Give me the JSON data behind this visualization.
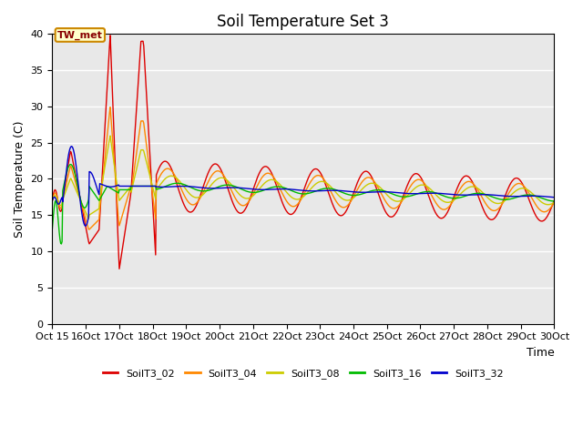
{
  "title": "Soil Temperature Set 3",
  "xlabel": "Time",
  "ylabel": "Soil Temperature (C)",
  "ylim": [
    0,
    40
  ],
  "xlim": [
    0,
    15
  ],
  "series_colors": [
    "#dd0000",
    "#ff8800",
    "#cccc00",
    "#00bb00",
    "#0000cc"
  ],
  "series_labels": [
    "SoilT3_02",
    "SoilT3_04",
    "SoilT3_08",
    "SoilT3_16",
    "SoilT3_32"
  ],
  "annotation_text": "TW_met",
  "x_tick_labels": [
    "Oct 15",
    "Oct 16",
    "Oct 17",
    "Oct 18",
    "Oct 19",
    "Oct 20",
    "Oct 21",
    "Oct 22",
    "Oct 23",
    "Oct 24",
    "Oct 25",
    "Oct 26",
    "Oct 27",
    "Oct 28",
    "Oct 29",
    "Oct 30"
  ],
  "background_color": "#e8e8e8",
  "title_fontsize": 12,
  "tick_fontsize": 8,
  "label_fontsize": 9
}
